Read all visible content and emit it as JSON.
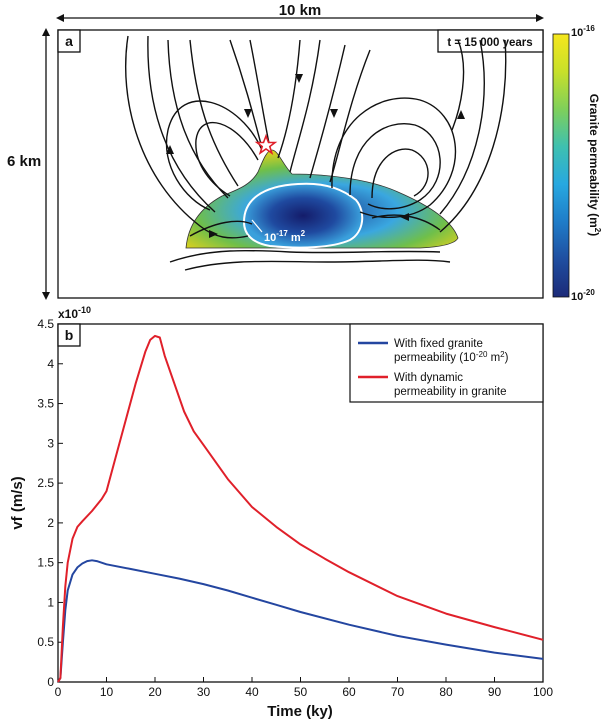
{
  "panel_a": {
    "letter": "a",
    "scale_width": "10 km",
    "scale_height": "6 km",
    "time_label": "t = 15 000 years",
    "contour_label_base": "10",
    "contour_label_exp": "-17",
    "contour_label_unit": " m",
    "contour_label_unit_exp": "2",
    "colorbar": {
      "title": "Granite permeability (m",
      "title_exp": "2",
      "title_end": ")",
      "top_base": "10",
      "top_exp": "-16",
      "bottom_base": "10",
      "bottom_exp": "-20",
      "colors": [
        "#f5e61d",
        "#c8e02a",
        "#7fd05a",
        "#3ec0b0",
        "#27a8e0",
        "#1f7cc8",
        "#1f4ea0",
        "#1c2a78"
      ]
    },
    "granite_colors": {
      "rim": "#d8d020",
      "mid": "#6fbf4a",
      "inner": "#3aa7e0",
      "core": "#1a3a90"
    }
  },
  "chart_data": {
    "type": "line",
    "panel_letter": "b",
    "xlabel": "Time (ky)",
    "ylabel": "vf (m/s)",
    "y_multiplier_base": "x10",
    "y_multiplier_exp": "-10",
    "xlim": [
      0,
      100
    ],
    "ylim": [
      0,
      4.5
    ],
    "xticks": [
      0,
      10,
      20,
      30,
      40,
      50,
      60,
      70,
      80,
      90,
      100
    ],
    "yticks": [
      0,
      0.5,
      1,
      1.5,
      2,
      2.5,
      3,
      3.5,
      4,
      4.5
    ],
    "ytick_labels": [
      "0",
      "0.5",
      "1",
      "1.5",
      "2",
      "2.5",
      "3",
      "3.5",
      "4",
      "4.5"
    ],
    "legend_position": "top-right",
    "series": [
      {
        "name": "With fixed granite permeability",
        "name_line1": "With fixed granite",
        "name_line2_pre": "permeability (10",
        "name_line2_exp": "-20",
        "name_line2_post": " m",
        "name_line2_exp2": "2",
        "name_line2_end": ")",
        "color": "#2446a0",
        "x": [
          0.5,
          1,
          1.5,
          2,
          3,
          4,
          5,
          6,
          7,
          8,
          10,
          15,
          20,
          25,
          30,
          35,
          40,
          45,
          50,
          60,
          70,
          80,
          90,
          100
        ],
        "y": [
          0.05,
          0.5,
          0.9,
          1.15,
          1.35,
          1.44,
          1.49,
          1.52,
          1.53,
          1.52,
          1.48,
          1.42,
          1.36,
          1.3,
          1.23,
          1.15,
          1.06,
          0.97,
          0.88,
          0.72,
          0.58,
          0.47,
          0.37,
          0.29
        ]
      },
      {
        "name": "With dynamic permeability in granite",
        "name_line1": "With dynamic",
        "name_line2_pre": "permeability in granite",
        "color": "#e0202a",
        "x": [
          0.5,
          1,
          1.5,
          2,
          3,
          4,
          5,
          7,
          9,
          10,
          12,
          14,
          16,
          18,
          19,
          20,
          21,
          22,
          24,
          26,
          28,
          30,
          35,
          40,
          45,
          50,
          55,
          60,
          70,
          80,
          90,
          100
        ],
        "y": [
          0.05,
          0.7,
          1.2,
          1.5,
          1.8,
          1.95,
          2.02,
          2.15,
          2.3,
          2.4,
          2.85,
          3.3,
          3.75,
          4.15,
          4.3,
          4.35,
          4.33,
          4.1,
          3.75,
          3.4,
          3.15,
          2.98,
          2.55,
          2.2,
          1.95,
          1.73,
          1.55,
          1.38,
          1.08,
          0.86,
          0.69,
          0.53
        ]
      }
    ]
  }
}
